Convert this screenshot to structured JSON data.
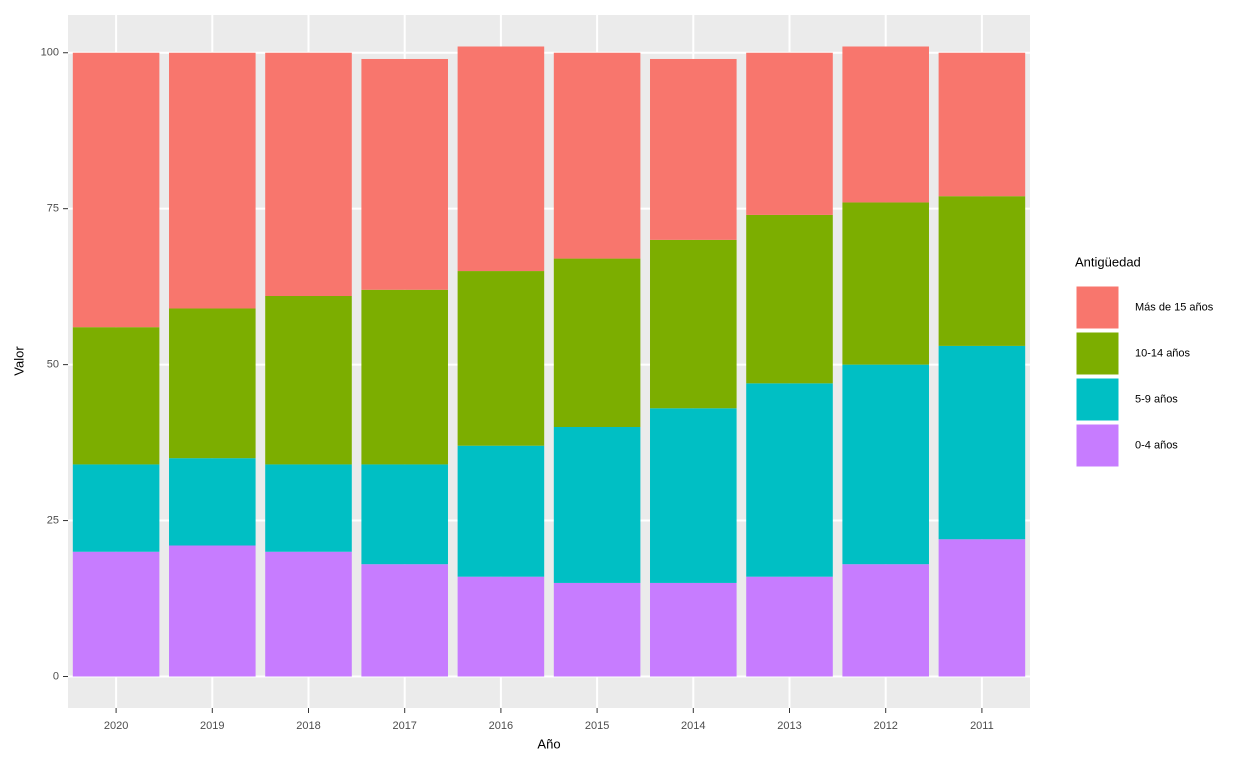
{
  "chart_data": {
    "type": "stacked_bar",
    "x_label": "Año",
    "y_label": "Valor",
    "legend_title": "Antigüedad",
    "categories": [
      "2020",
      "2019",
      "2018",
      "2017",
      "2016",
      "2015",
      "2014",
      "2013",
      "2012",
      "2011"
    ],
    "series": [
      {
        "name": "0-4 años",
        "color": "#C77CFF",
        "values": [
          20,
          21,
          20,
          18,
          16,
          15,
          15,
          16,
          18,
          22
        ]
      },
      {
        "name": "5-9 años",
        "color": "#00BFC4",
        "values": [
          14,
          14,
          14,
          16,
          21,
          25,
          28,
          31,
          32,
          31
        ]
      },
      {
        "name": "10-14 años",
        "color": "#7CAE00",
        "values": [
          22,
          24,
          27,
          28,
          28,
          27,
          27,
          27,
          26,
          24
        ]
      },
      {
        "name": "Más de 15 años",
        "color": "#F8766D",
        "values": [
          44,
          41,
          39,
          37,
          36,
          33,
          29,
          26,
          25,
          23
        ]
      }
    ],
    "ylim": [
      -5.05,
      106.05
    ],
    "yticks": [
      0,
      25,
      50,
      75,
      100
    ],
    "grid": true,
    "legend": "right"
  }
}
